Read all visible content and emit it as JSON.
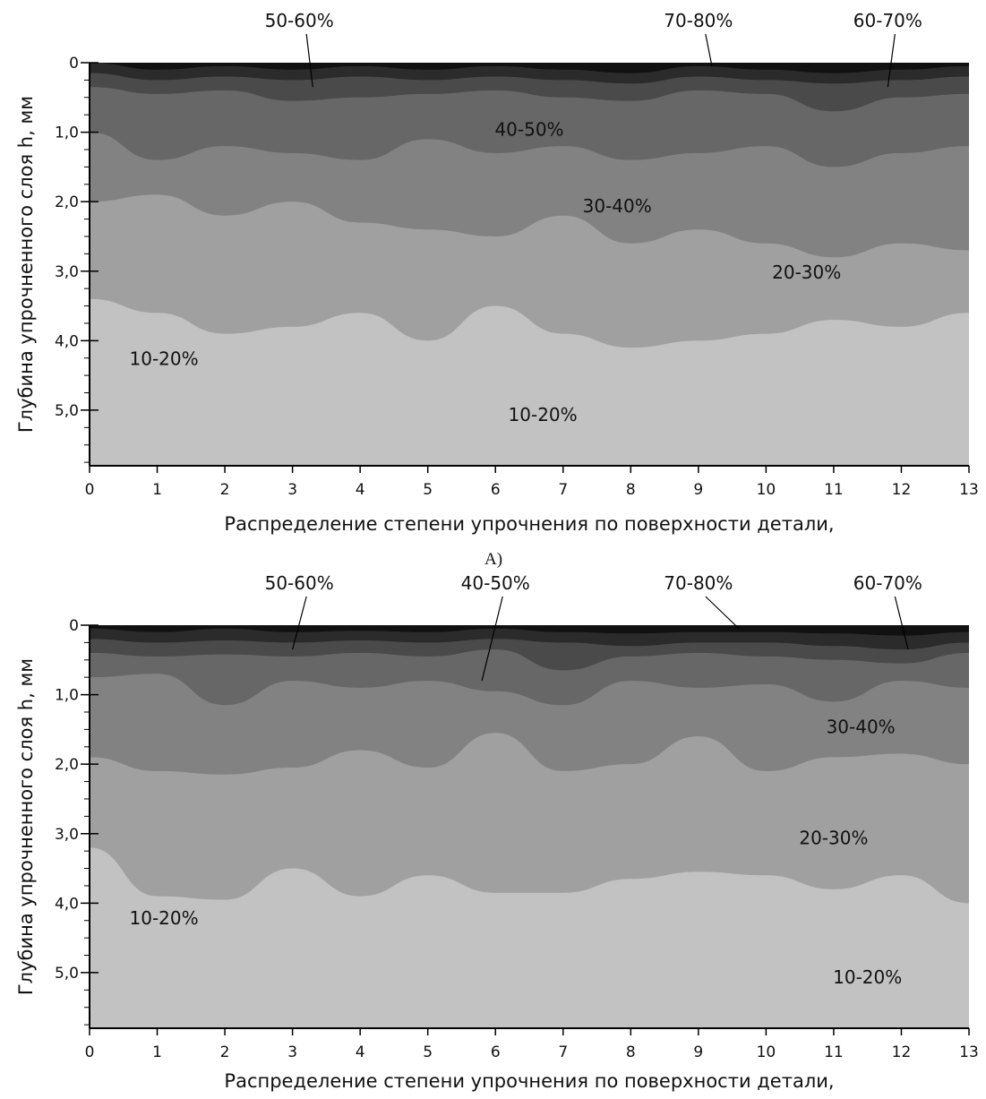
{
  "chart_data": [
    {
      "type": "heatmap",
      "panel_label": "",
      "xlabel": "Распределение степени упрочнения по поверхности детали,",
      "ylabel": "Глубина упрочненного слоя h, мм",
      "xlim": [
        0,
        13
      ],
      "ylim": [
        0,
        5.8
      ],
      "x_ticks": [
        "0",
        "1",
        "2",
        "3",
        "4",
        "5",
        "6",
        "7",
        "8",
        "9",
        "10",
        "11",
        "12",
        "13"
      ],
      "y_ticks": [
        {
          "value": 0,
          "label": "0"
        },
        {
          "value": 1,
          "label": "1,0"
        },
        {
          "value": 2,
          "label": "2,0"
        },
        {
          "value": 3,
          "label": "3,0"
        },
        {
          "value": 4,
          "label": "4,0"
        },
        {
          "value": 5,
          "label": "5,0"
        }
      ],
      "legend_colors": {
        "70-80%": "#111111",
        "60-70%": "#2b2b2b",
        "50-60%": "#4a4a4a",
        "40-50%": "#676767",
        "30-40%": "#828282",
        "20-30%": "#a0a0a0",
        "10-20%": "#c2c2c2"
      },
      "contour_bands": [
        {
          "level": "70-80%",
          "color": "#111111",
          "depth_mm": [
            0.0,
            0.1,
            0.05,
            0.1,
            0.05,
            0.1,
            0.05,
            0.1,
            0.15,
            0.05,
            0.1,
            0.15,
            0.1,
            0.05
          ]
        },
        {
          "level": "60-70%",
          "color": "#2b2b2b",
          "depth_mm": [
            0.15,
            0.25,
            0.2,
            0.25,
            0.2,
            0.25,
            0.2,
            0.25,
            0.3,
            0.2,
            0.25,
            0.3,
            0.25,
            0.2
          ]
        },
        {
          "level": "50-60%",
          "color": "#4a4a4a",
          "depth_mm": [
            0.35,
            0.45,
            0.4,
            0.55,
            0.5,
            0.45,
            0.4,
            0.5,
            0.55,
            0.4,
            0.45,
            0.7,
            0.5,
            0.45
          ]
        },
        {
          "level": "40-50%",
          "color": "#676767",
          "depth_mm": [
            1.0,
            1.4,
            1.2,
            1.3,
            1.4,
            1.1,
            1.3,
            1.2,
            1.4,
            1.3,
            1.2,
            1.5,
            1.3,
            1.2
          ]
        },
        {
          "level": "30-40%",
          "color": "#828282",
          "depth_mm": [
            2.0,
            1.9,
            2.2,
            2.0,
            2.3,
            2.4,
            2.5,
            2.2,
            2.6,
            2.4,
            2.6,
            2.8,
            2.6,
            2.7
          ]
        },
        {
          "level": "20-30%",
          "color": "#a0a0a0",
          "depth_mm": [
            3.4,
            3.6,
            3.9,
            3.8,
            3.6,
            4.0,
            3.5,
            3.9,
            4.1,
            4.0,
            3.9,
            3.7,
            3.8,
            3.6
          ]
        },
        {
          "level": "10-20%",
          "color": "#c2c2c2",
          "depth_mm": [
            5.8,
            5.8,
            5.8,
            5.8,
            5.8,
            5.8,
            5.8,
            5.8,
            5.8,
            5.8,
            5.8,
            5.8,
            5.8,
            5.8
          ]
        }
      ],
      "annotations": [
        {
          "text": "50-60%",
          "x": 3.1,
          "y": -0.65,
          "pointer_to": [
            3.3,
            0.35
          ]
        },
        {
          "text": "70-80%",
          "x": 9.0,
          "y": -0.6,
          "pointer_to": [
            9.2,
            0.05
          ]
        },
        {
          "text": "60-70%",
          "x": 11.8,
          "y": -0.65,
          "pointer_to": [
            11.8,
            0.35
          ]
        },
        {
          "text": "40-50%",
          "x": 6.5,
          "y": 0.95
        },
        {
          "text": "30-40%",
          "x": 7.8,
          "y": 2.05
        },
        {
          "text": "20-30%",
          "x": 10.6,
          "y": 3.0
        },
        {
          "text": "10-20%",
          "x": 1.1,
          "y": 4.25
        },
        {
          "text": "10-20%",
          "x": 6.7,
          "y": 5.05
        }
      ],
      "grid": false
    },
    {
      "type": "heatmap",
      "panel_label": "",
      "xlabel": "Распределение степени упрочнения по поверхности детали,",
      "ylabel": "Глубина упрочненного слоя h, мм",
      "xlim": [
        0,
        13
      ],
      "ylim": [
        0,
        5.8
      ],
      "x_ticks": [
        "0",
        "1",
        "2",
        "3",
        "4",
        "5",
        "6",
        "7",
        "8",
        "9",
        "10",
        "11",
        "12",
        "13"
      ],
      "y_ticks": [
        {
          "value": 0,
          "label": "0"
        },
        {
          "value": 1,
          "label": "1,0"
        },
        {
          "value": 2,
          "label": "2,0"
        },
        {
          "value": 3,
          "label": "3,0"
        },
        {
          "value": 4,
          "label": "4,0"
        },
        {
          "value": 5,
          "label": "5,0"
        }
      ],
      "contour_bands": [
        {
          "level": "70-80%",
          "color": "#111111",
          "depth_mm": [
            0.05,
            0.1,
            0.05,
            0.1,
            0.08,
            0.1,
            0.05,
            0.1,
            0.12,
            0.1,
            0.1,
            0.12,
            0.15,
            0.1
          ]
        },
        {
          "level": "60-70%",
          "color": "#2b2b2b",
          "depth_mm": [
            0.2,
            0.25,
            0.22,
            0.25,
            0.22,
            0.25,
            0.2,
            0.25,
            0.3,
            0.25,
            0.25,
            0.3,
            0.35,
            0.25
          ]
        },
        {
          "level": "50-60%",
          "color": "#4a4a4a",
          "depth_mm": [
            0.4,
            0.45,
            0.42,
            0.45,
            0.4,
            0.45,
            0.35,
            0.65,
            0.45,
            0.4,
            0.45,
            0.5,
            0.55,
            0.4
          ]
        },
        {
          "level": "40-50%",
          "color": "#676767",
          "depth_mm": [
            0.75,
            0.7,
            1.15,
            0.8,
            0.9,
            0.8,
            0.95,
            1.15,
            0.8,
            0.9,
            0.85,
            1.1,
            0.8,
            0.9
          ]
        },
        {
          "level": "30-40%",
          "color": "#828282",
          "depth_mm": [
            1.9,
            2.1,
            2.15,
            2.05,
            1.8,
            2.05,
            1.55,
            2.1,
            2.0,
            1.6,
            2.1,
            1.9,
            1.85,
            2.0
          ]
        },
        {
          "level": "20-30%",
          "color": "#a0a0a0",
          "depth_mm": [
            3.2,
            3.9,
            3.95,
            3.5,
            3.9,
            3.6,
            3.85,
            3.85,
            3.65,
            3.55,
            3.6,
            3.8,
            3.6,
            4.0
          ]
        },
        {
          "level": "10-20%",
          "color": "#c2c2c2",
          "depth_mm": [
            5.8,
            5.8,
            5.8,
            5.8,
            5.8,
            5.8,
            5.8,
            5.8,
            5.8,
            5.8,
            5.8,
            5.8,
            5.8,
            5.8
          ]
        }
      ],
      "annotations": [
        {
          "text": "50-60%",
          "x": 3.1,
          "y": -0.65,
          "pointer_to": [
            3.0,
            0.35
          ]
        },
        {
          "text": "40-50%",
          "x": 6.0,
          "y": -0.65,
          "pointer_to": [
            5.8,
            0.8
          ]
        },
        {
          "text": "70-80%",
          "x": 9.0,
          "y": -0.6,
          "pointer_to": [
            9.6,
            0.05
          ]
        },
        {
          "text": "60-70%",
          "x": 11.8,
          "y": -0.65,
          "pointer_to": [
            12.1,
            0.35
          ]
        },
        {
          "text": "30-40%",
          "x": 11.4,
          "y": 1.45
        },
        {
          "text": "20-30%",
          "x": 11.0,
          "y": 3.05
        },
        {
          "text": "10-20%",
          "x": 1.1,
          "y": 4.2
        },
        {
          "text": "10-20%",
          "x": 11.5,
          "y": 5.05
        }
      ],
      "grid": false
    }
  ],
  "panel_labels": [
    "А)"
  ]
}
